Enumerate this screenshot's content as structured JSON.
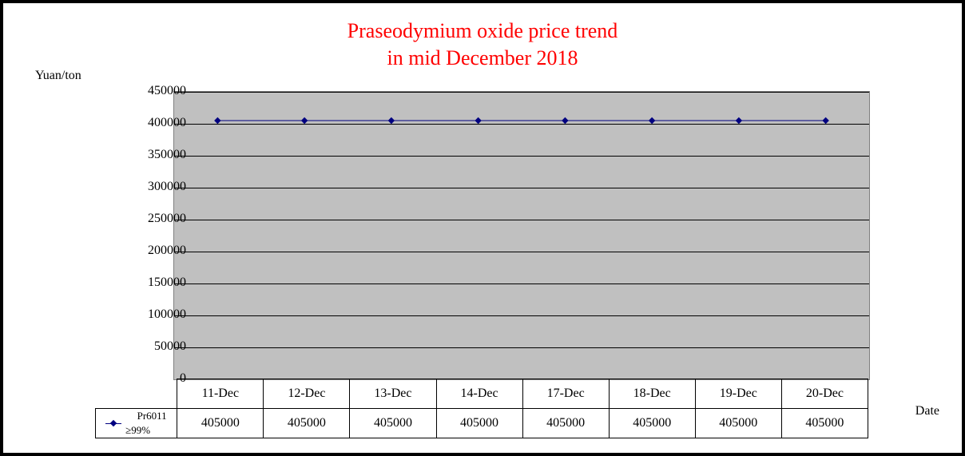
{
  "chart": {
    "type": "line",
    "title_line1": "Praseodymium oxide price trend",
    "title_line2": "in mid December 2018",
    "title_color": "#ff0000",
    "title_fontsize": 26,
    "y_axis_label": "Yuan/ton",
    "x_axis_label": "Date",
    "background_color": "#ffffff",
    "plot_bg_color": "#c0c0c0",
    "grid_color": "#000000",
    "border_color": "#808080",
    "frame_color": "#000000",
    "ylim": [
      0,
      450000
    ],
    "ytick_step": 50000,
    "yticks": [
      "0",
      "50000",
      "100000",
      "150000",
      "200000",
      "250000",
      "300000",
      "350000",
      "400000",
      "450000"
    ],
    "categories": [
      "11-Dec",
      "12-Dec",
      "13-Dec",
      "14-Dec",
      "17-Dec",
      "18-Dec",
      "19-Dec",
      "20-Dec"
    ],
    "series": {
      "name": "Pr6011 ≥99%",
      "color": "#000080",
      "marker": "diamond",
      "marker_size": 6,
      "line_width": 1,
      "values": [
        405000,
        405000,
        405000,
        405000,
        405000,
        405000,
        405000,
        405000
      ],
      "display_values": [
        "405000",
        "405000",
        "405000",
        "405000",
        "405000",
        "405000",
        "405000",
        "405000"
      ]
    },
    "label_fontsize": 16,
    "tick_fontsize": 16
  }
}
